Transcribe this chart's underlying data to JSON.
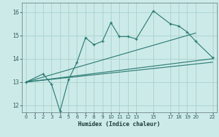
{
  "xlabel": "Humidex (Indice chaleur)",
  "background_color": "#cceae8",
  "grid_color": "#aad4d0",
  "line_color": "#2a7a72",
  "xlim": [
    -0.5,
    22.5
  ],
  "ylim": [
    11.7,
    16.4
  ],
  "yticks": [
    12,
    13,
    14,
    15,
    16
  ],
  "xticks": [
    0,
    1,
    2,
    3,
    4,
    5,
    6,
    7,
    8,
    9,
    10,
    11,
    12,
    13,
    15,
    17,
    18,
    19,
    20,
    22
  ],
  "line1_x": [
    0,
    2,
    3,
    4,
    5,
    6,
    7,
    8,
    9,
    10,
    11,
    12,
    13,
    15,
    17,
    18,
    19,
    20,
    22
  ],
  "line1_y": [
    13.0,
    13.35,
    12.9,
    11.75,
    13.1,
    13.85,
    14.9,
    14.6,
    14.75,
    15.55,
    14.95,
    14.95,
    14.85,
    16.05,
    15.5,
    15.4,
    15.15,
    14.75,
    14.05
  ],
  "line2_x": [
    0,
    20
  ],
  "line2_y": [
    13.0,
    15.1
  ],
  "line3_x": [
    0,
    22
  ],
  "line3_y": [
    13.0,
    13.85
  ],
  "line4_x": [
    0,
    22
  ],
  "line4_y": [
    13.0,
    14.0
  ]
}
